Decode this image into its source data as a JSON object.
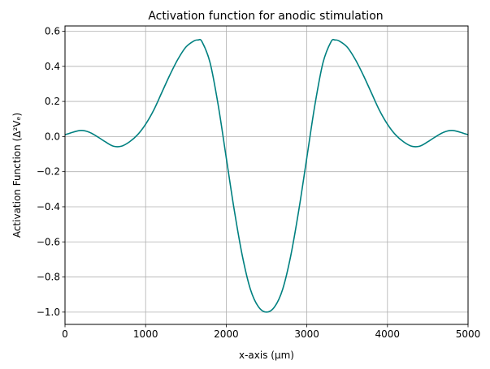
{
  "chart_data": {
    "type": "line",
    "title": "Activation function for anodic stimulation",
    "xlabel": "x-axis (µm)",
    "ylabel": "Activation Function (Δ²Vₑ)",
    "xlim": [
      0,
      5000
    ],
    "ylim": [
      -1.07,
      0.63
    ],
    "grid": true,
    "xticks": [
      0,
      1000,
      2000,
      3000,
      4000,
      5000
    ],
    "xtick_labels": [
      "0",
      "1000",
      "2000",
      "3000",
      "4000",
      "5000"
    ],
    "yticks": [
      -1.0,
      -0.8,
      -0.6,
      -0.4,
      -0.2,
      0.0,
      0.2,
      0.4,
      0.6
    ],
    "ytick_labels": [
      "−1.0",
      "−0.8",
      "−0.6",
      "−0.4",
      "−0.2",
      "0.0",
      "0.2",
      "0.4",
      "0.6"
    ],
    "series": [
      {
        "color": "#008080",
        "x": [
          0,
          100,
          200,
          300,
          400,
          500,
          600,
          700,
          800,
          900,
          1000,
          1100,
          1200,
          1300,
          1400,
          1500,
          1600,
          1650,
          1700,
          1800,
          1900,
          2000,
          2100,
          2200,
          2300,
          2400,
          2500,
          2600,
          2700,
          2800,
          2900,
          3000,
          3100,
          3200,
          3300,
          3350,
          3400,
          3500,
          3600,
          3700,
          3800,
          3900,
          4000,
          4100,
          4200,
          4300,
          4400,
          4500,
          4600,
          4700,
          4800,
          4900,
          5000
        ],
        "y": [
          0.01,
          0.025,
          0.035,
          0.025,
          0.0,
          -0.03,
          -0.055,
          -0.055,
          -0.03,
          0.01,
          0.07,
          0.15,
          0.25,
          0.35,
          0.44,
          0.51,
          0.545,
          0.55,
          0.54,
          0.42,
          0.18,
          -0.12,
          -0.42,
          -0.68,
          -0.87,
          -0.97,
          -1.0,
          -0.97,
          -0.87,
          -0.68,
          -0.42,
          -0.12,
          0.18,
          0.42,
          0.54,
          0.55,
          0.545,
          0.51,
          0.44,
          0.35,
          0.25,
          0.15,
          0.07,
          0.01,
          -0.03,
          -0.055,
          -0.055,
          -0.03,
          0.0,
          0.025,
          0.035,
          0.025,
          0.01
        ]
      }
    ]
  }
}
